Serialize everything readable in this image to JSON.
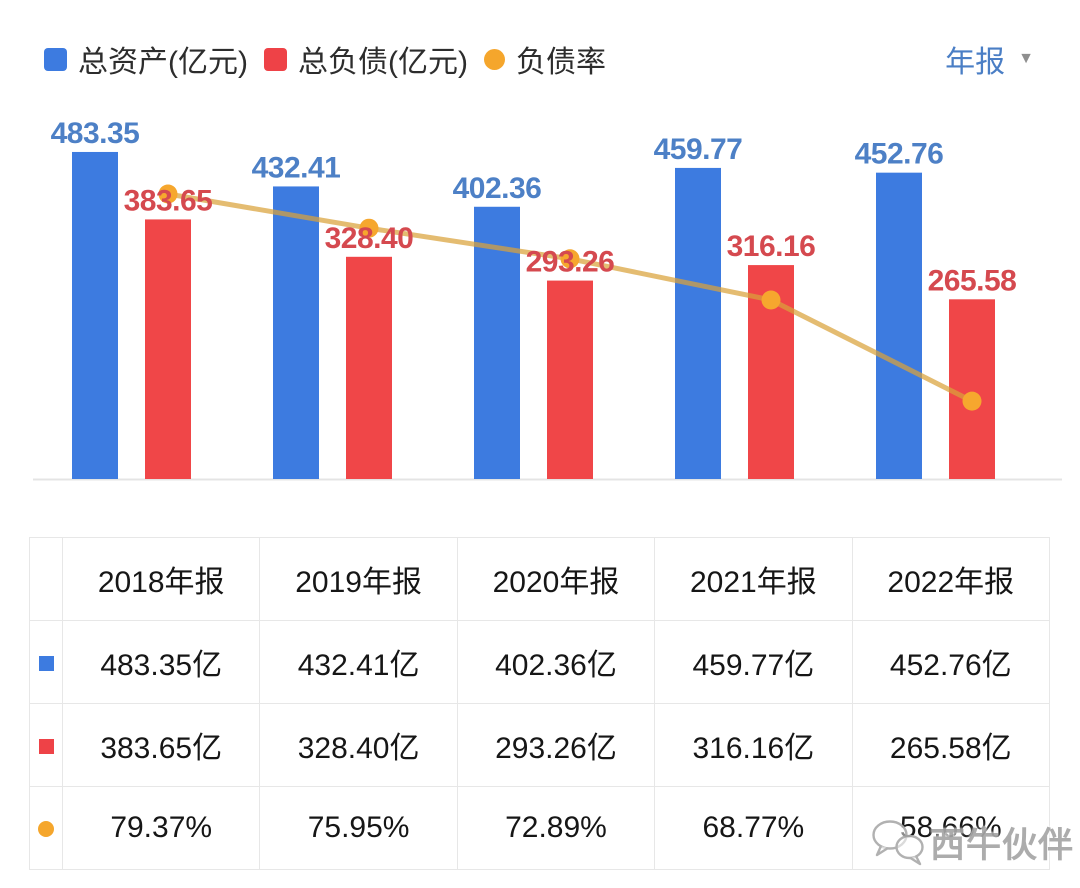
{
  "header": {
    "legend": [
      {
        "label": "总资产(亿元)",
        "color": "#3d7be0",
        "shape": "square"
      },
      {
        "label": "总负债(亿元)",
        "color": "#ee4247",
        "shape": "square"
      },
      {
        "label": "负债率",
        "color": "#f5a62c",
        "shape": "circle"
      }
    ],
    "period_selector": {
      "label": "年报"
    }
  },
  "chart_data": {
    "type": "bar",
    "categories": [
      "2018年报",
      "2019年报",
      "2020年报",
      "2021年报",
      "2022年报"
    ],
    "series": [
      {
        "name": "总资产(亿元)",
        "type": "bar",
        "color": "#3d7be0",
        "label_color": "#4d80c6",
        "values": [
          483.35,
          432.41,
          402.36,
          459.77,
          452.76
        ]
      },
      {
        "name": "总负债(亿元)",
        "type": "bar",
        "color": "#f04648",
        "label_color": "#d5494f",
        "values": [
          383.65,
          328.4,
          293.26,
          316.16,
          265.58
        ]
      },
      {
        "name": "负债率",
        "type": "line",
        "color": "#d9a23a",
        "point_color": "#f6a72e",
        "values_percent": [
          79.37,
          75.95,
          72.89,
          68.77,
          58.66
        ]
      }
    ],
    "value_labels": true,
    "legend_position": "top-left",
    "grid": false,
    "baseline_color": "#e4e4e4"
  },
  "table": {
    "columns": [
      "2018年报",
      "2019年报",
      "2020年报",
      "2021年报",
      "2022年报"
    ],
    "rows": [
      {
        "series": "总资产(亿元)",
        "swatch": "blue-square",
        "swatch_color": "#3d7be0",
        "cells": [
          "483.35亿",
          "432.41亿",
          "402.36亿",
          "459.77亿",
          "452.76亿"
        ]
      },
      {
        "series": "总负债(亿元)",
        "swatch": "red-square",
        "swatch_color": "#ee4247",
        "cells": [
          "383.65亿",
          "328.40亿",
          "293.26亿",
          "316.16亿",
          "265.58亿"
        ]
      },
      {
        "series": "负债率",
        "swatch": "orange-circle",
        "swatch_color": "#f5a62c",
        "cells": [
          "79.37%",
          "75.95%",
          "72.89%",
          "68.77%",
          "58.66%"
        ]
      }
    ]
  },
  "watermark": {
    "text": "西牛伙伴",
    "icon": "wechat-icon"
  }
}
